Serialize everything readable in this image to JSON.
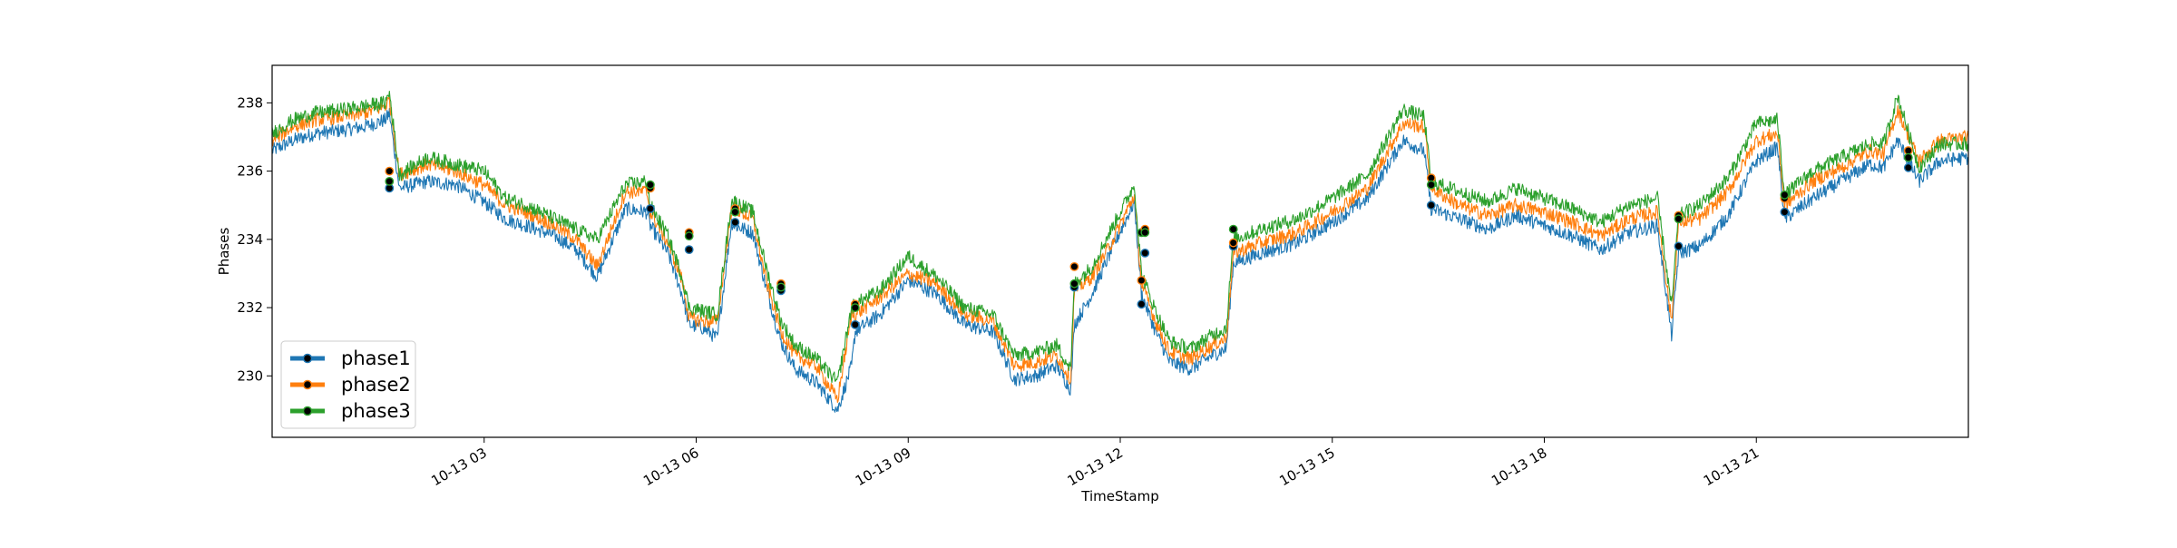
{
  "chart_data": {
    "type": "line",
    "xlabel": "TimeStamp",
    "ylabel": "Phases",
    "x_range": [
      "10-13 00:00",
      "10-13 24:00"
    ],
    "x_ticks": [
      {
        "hour": 3,
        "label": "10-13 03"
      },
      {
        "hour": 6,
        "label": "10-13 06"
      },
      {
        "hour": 9,
        "label": "10-13 09"
      },
      {
        "hour": 12,
        "label": "10-13 12"
      },
      {
        "hour": 15,
        "label": "10-13 15"
      },
      {
        "hour": 18,
        "label": "10-13 18"
      },
      {
        "hour": 21,
        "label": "10-13 21"
      }
    ],
    "ylim": [
      228.2,
      239.1
    ],
    "y_ticks": [
      {
        "value": 230,
        "label": "230"
      },
      {
        "value": 232,
        "label": "232"
      },
      {
        "value": 234,
        "label": "234"
      },
      {
        "value": 236,
        "label": "236"
      },
      {
        "value": 238,
        "label": "238"
      }
    ],
    "grid": false,
    "legend_position": "lower-left",
    "x": [
      0.0,
      0.3,
      0.6,
      1.0,
      1.3,
      1.6,
      1.66,
      1.8,
      2.2,
      2.6,
      3.0,
      3.3,
      3.6,
      4.0,
      4.3,
      4.6,
      5.0,
      5.3,
      5.35,
      5.6,
      5.8,
      5.9,
      6.1,
      6.3,
      6.5,
      6.55,
      6.8,
      7.0,
      7.2,
      7.4,
      7.7,
      8.0,
      8.2,
      8.25,
      8.6,
      9.0,
      9.4,
      9.8,
      10.2,
      10.5,
      10.8,
      11.1,
      11.3,
      11.35,
      11.6,
      11.9,
      12.2,
      12.3,
      12.5,
      12.7,
      13.0,
      13.3,
      13.5,
      13.6,
      14.0,
      14.5,
      15.0,
      15.5,
      16.0,
      16.3,
      16.4,
      16.8,
      17.2,
      17.6,
      18.0,
      18.4,
      18.8,
      19.2,
      19.6,
      19.8,
      19.9,
      20.2,
      20.6,
      21.0,
      21.3,
      21.4,
      21.8,
      22.2,
      22.6,
      22.8,
      23.0,
      23.3,
      23.6,
      24.0
    ],
    "series": [
      {
        "name": "phase1",
        "color": "#1f77b4",
        "values": [
          236.6,
          236.9,
          237.1,
          237.2,
          237.3,
          237.5,
          237.7,
          235.5,
          235.7,
          235.6,
          235.1,
          234.6,
          234.4,
          234.1,
          233.7,
          232.9,
          234.9,
          234.8,
          234.4,
          233.6,
          232.4,
          231.5,
          231.4,
          231.1,
          234.5,
          234.4,
          234.2,
          232.5,
          231.0,
          230.2,
          229.8,
          229.0,
          230.3,
          231.3,
          231.8,
          232.8,
          232.4,
          231.5,
          231.3,
          229.9,
          230.0,
          230.3,
          229.6,
          231.5,
          232.4,
          233.8,
          235.1,
          232.4,
          231.3,
          230.4,
          230.2,
          230.6,
          230.8,
          233.3,
          233.6,
          233.9,
          234.5,
          235.2,
          236.9,
          236.6,
          234.9,
          234.6,
          234.3,
          234.7,
          234.4,
          234.1,
          233.7,
          234.2,
          234.4,
          231.2,
          233.6,
          233.8,
          234.7,
          236.3,
          236.7,
          234.6,
          235.2,
          235.7,
          236.2,
          236.1,
          236.9,
          235.7,
          236.3,
          236.4
        ]
      },
      {
        "name": "phase2",
        "color": "#ff7f0e",
        "values": [
          236.9,
          237.3,
          237.5,
          237.6,
          237.7,
          237.9,
          238.1,
          235.9,
          236.2,
          236.0,
          235.6,
          235.0,
          234.8,
          234.4,
          234.0,
          233.2,
          235.4,
          235.4,
          234.8,
          233.9,
          232.8,
          231.7,
          231.6,
          231.6,
          234.9,
          234.9,
          234.6,
          232.7,
          231.3,
          230.6,
          230.3,
          229.3,
          231.8,
          231.8,
          232.3,
          233.0,
          232.7,
          231.8,
          231.6,
          230.3,
          230.4,
          230.6,
          229.9,
          232.5,
          232.9,
          234.0,
          235.3,
          232.7,
          231.6,
          230.7,
          230.5,
          230.9,
          231.1,
          233.6,
          233.9,
          234.2,
          234.8,
          235.5,
          237.4,
          237.3,
          235.5,
          235.0,
          234.7,
          235.0,
          234.8,
          234.5,
          234.1,
          234.6,
          234.8,
          231.6,
          234.5,
          234.6,
          235.4,
          236.9,
          237.1,
          235.0,
          235.7,
          236.1,
          236.6,
          236.5,
          237.8,
          236.3,
          236.9,
          237.0
        ]
      },
      {
        "name": "phase3",
        "color": "#2ca02c",
        "values": [
          237.1,
          237.5,
          237.7,
          237.8,
          237.9,
          238.0,
          238.3,
          235.9,
          236.4,
          236.2,
          236.0,
          235.2,
          235.0,
          234.6,
          234.3,
          234.0,
          235.6,
          235.7,
          235.0,
          234.1,
          232.9,
          232.0,
          231.9,
          231.8,
          235.1,
          235.1,
          234.8,
          233.1,
          231.6,
          230.9,
          230.5,
          229.8,
          232.0,
          232.1,
          232.5,
          233.5,
          232.9,
          232.0,
          231.8,
          230.6,
          230.7,
          230.9,
          230.2,
          232.7,
          233.2,
          234.4,
          235.6,
          233.0,
          231.9,
          231.0,
          230.8,
          231.2,
          231.4,
          234.0,
          234.3,
          234.6,
          235.2,
          235.9,
          237.8,
          237.6,
          235.7,
          235.4,
          235.1,
          235.5,
          235.2,
          234.9,
          234.5,
          235.0,
          235.2,
          232.0,
          234.7,
          235.0,
          235.8,
          237.4,
          237.5,
          235.3,
          236.0,
          236.4,
          236.8,
          236.8,
          238.2,
          236.1,
          236.8,
          236.8
        ]
      }
    ],
    "markers": [
      {
        "x": 1.66,
        "values": [
          235.5,
          236.0,
          235.7
        ]
      },
      {
        "x": 5.35,
        "values": [
          234.9,
          235.5,
          235.6
        ]
      },
      {
        "x": 5.9,
        "values": [
          233.7,
          234.2,
          234.1
        ]
      },
      {
        "x": 6.55,
        "values": [
          234.5,
          234.9,
          234.8
        ]
      },
      {
        "x": 7.2,
        "values": [
          232.5,
          232.7,
          232.6
        ]
      },
      {
        "x": 8.25,
        "values": [
          231.5,
          232.1,
          232.0
        ]
      },
      {
        "x": 11.35,
        "values": [
          232.6,
          233.2,
          232.7
        ]
      },
      {
        "x": 12.3,
        "values": [
          232.1,
          232.8,
          234.2
        ]
      },
      {
        "x": 12.35,
        "values": [
          233.6,
          234.3,
          234.2
        ]
      },
      {
        "x": 13.6,
        "values": [
          233.8,
          233.9,
          234.3
        ]
      },
      {
        "x": 16.4,
        "values": [
          235.0,
          235.8,
          235.6
        ]
      },
      {
        "x": 19.9,
        "values": [
          233.8,
          234.7,
          234.6
        ]
      },
      {
        "x": 21.4,
        "values": [
          234.8,
          235.2,
          235.3
        ]
      },
      {
        "x": 23.15,
        "values": [
          236.1,
          236.6,
          236.4
        ]
      }
    ]
  }
}
